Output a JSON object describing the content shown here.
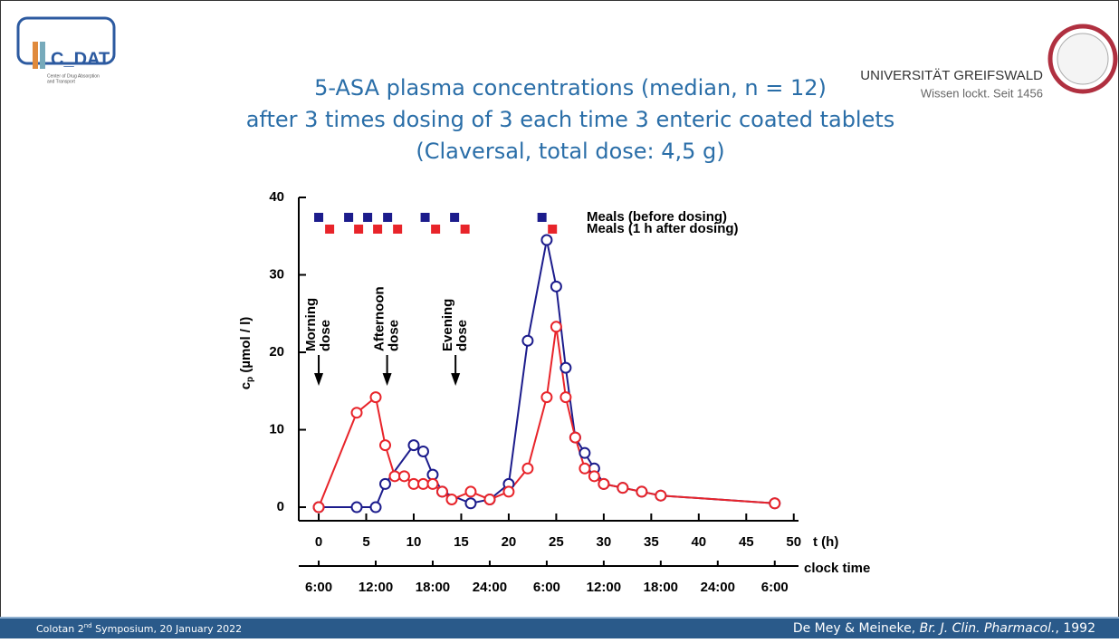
{
  "slide": {
    "logo": {
      "name": "C_DAT",
      "subtitle": [
        "Center of Drug Absorption",
        "and Transport"
      ]
    },
    "university": {
      "name": "UNIVERSITÄT GREIFSWALD",
      "motto": "Wissen lockt. Seit 1456"
    },
    "title": [
      "5-ASA plasma concentrations (median, n = 12)",
      "after 3 times dosing of 3 each time 3 enteric coated tablets",
      "(Claversal, total dose: 4,5 g)"
    ],
    "footer_left": {
      "before": "Colotan 2",
      "sup": "nd",
      "after": " Symposium, 20 January 2022"
    },
    "footer_right": {
      "authors": "De Mey & Meineke, ",
      "journal": "Br. J. Clin. Pharmacol.",
      "year": ", 1992"
    }
  },
  "chart_data": {
    "type": "line",
    "xlabel": "t (h)",
    "ylabel": {
      "main": "c",
      "sub": "p",
      "rest": " (µmol / l)"
    },
    "xlim": [
      -2.1,
      50.5
    ],
    "ylim": [
      -1.75,
      40
    ],
    "xticks": [
      0,
      5,
      10,
      15,
      20,
      25,
      30,
      35,
      40,
      45,
      50
    ],
    "yticks": [
      0,
      10,
      20,
      30,
      40
    ],
    "x2label": "clock time",
    "x2ticks": [
      {
        "value": 0,
        "label": "6:00"
      },
      {
        "value": 6,
        "label": "12:00"
      },
      {
        "value": 12,
        "label": "18:00"
      },
      {
        "value": 18,
        "label": "24:00"
      },
      {
        "value": 24,
        "label": "6:00"
      },
      {
        "value": 30,
        "label": "12:00"
      },
      {
        "value": 36,
        "label": "18:00"
      },
      {
        "value": 42,
        "label": "24:00"
      },
      {
        "value": 48,
        "label": "6:00"
      }
    ],
    "series": [
      {
        "name": "Meals (before dosing)",
        "color": "#1c1c8c",
        "x": [
          0,
          4,
          6,
          7,
          10,
          11,
          12,
          13,
          16,
          18,
          20,
          22,
          24,
          25,
          26,
          27,
          28,
          29,
          30,
          32,
          34,
          36,
          48
        ],
        "values": [
          0,
          0,
          0,
          3,
          8,
          7.2,
          4.2,
          2,
          0.5,
          1,
          3,
          21.5,
          34.5,
          28.5,
          18,
          9,
          7,
          5,
          3,
          2.5,
          2,
          1.5,
          0.5
        ],
        "meals": [
          0,
          3.15,
          5.15,
          7.25,
          11.2,
          14.3,
          23.5
        ]
      },
      {
        "name": "Meals (1 h after dosing)",
        "color": "#e8242a",
        "x": [
          0,
          4,
          6,
          7,
          8,
          9,
          10,
          11,
          12,
          13,
          14,
          16,
          18,
          20,
          22,
          24,
          25,
          26,
          27,
          28,
          29,
          30,
          32,
          34,
          36,
          48
        ],
        "values": [
          0,
          12.2,
          14.2,
          8,
          4,
          4,
          3,
          3,
          3,
          2,
          1,
          2,
          1,
          2,
          5,
          14.2,
          23.3,
          14.2,
          9,
          5,
          4,
          3,
          2.5,
          2,
          1.5,
          0.5
        ],
        "meals": [
          1.15,
          4.2,
          6.2,
          8.3,
          12.3,
          15.4,
          24.6
        ]
      }
    ],
    "annotations": [
      {
        "lines": [
          "Morning",
          "dose"
        ],
        "x": 0
      },
      {
        "lines": [
          "Afternoon",
          "dose"
        ],
        "x": 7.2
      },
      {
        "lines": [
          "Evening",
          "dose"
        ],
        "x": 14.4
      }
    ]
  }
}
